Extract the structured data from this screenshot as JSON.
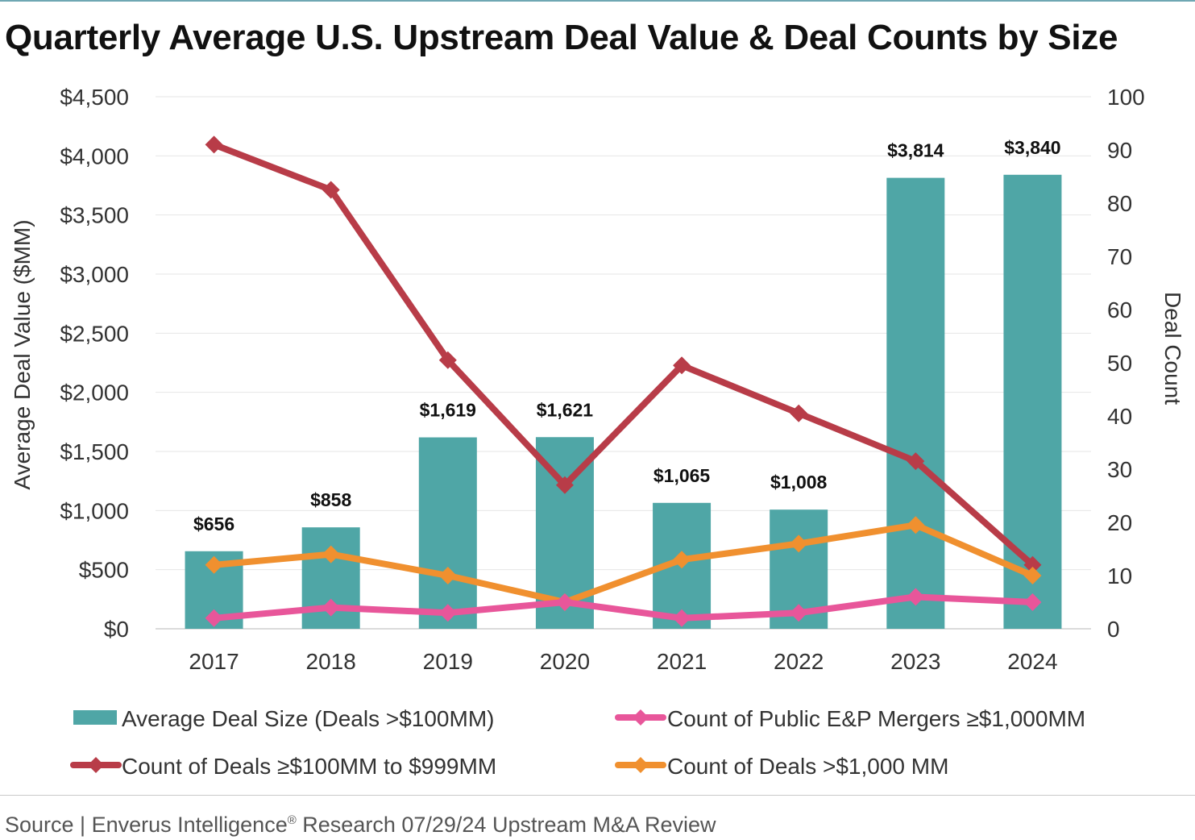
{
  "chart_data": {
    "type": "bar",
    "title": "Quarterly Average U.S. Upstream Deal Value & Deal Counts by Size",
    "categories": [
      "2017",
      "2018",
      "2019",
      "2020",
      "2021",
      "2022",
      "2023",
      "2024"
    ],
    "ylabel": "Average Deal Value ($MM)",
    "y2label": "Deal Count",
    "ylim": [
      0,
      4500
    ],
    "y2lim": [
      0,
      100
    ],
    "yticks": [
      "$0",
      "$500",
      "$1,000",
      "$1,500",
      "$2,000",
      "$2,500",
      "$3,000",
      "$3,500",
      "$4,000",
      "$4,500"
    ],
    "y2ticks": [
      "0",
      "10",
      "20",
      "30",
      "40",
      "50",
      "60",
      "70",
      "80",
      "90",
      "100"
    ],
    "grid": true,
    "series": [
      {
        "name": "Average Deal Size (Deals >$100MM)",
        "kind": "bar",
        "axis": "left",
        "color": "#4fa6a6",
        "values": [
          656,
          858,
          1619,
          1621,
          1065,
          1008,
          3814,
          3840
        ],
        "labels": [
          "$656",
          "$858",
          "$1,619",
          "$1,621",
          "$1,065",
          "$1,008",
          "$3,814",
          "$3,840"
        ]
      },
      {
        "name": "Count of Deals ≥$100MM to $999MM",
        "kind": "line",
        "axis": "right",
        "color": "#b83c48",
        "values": [
          91,
          82.5,
          50.5,
          27,
          49.5,
          40.5,
          31.5,
          12
        ]
      },
      {
        "name": "Count of Deals >$1,000 MM",
        "kind": "line",
        "axis": "right",
        "color": "#f0902f",
        "values": [
          12,
          14,
          10,
          5,
          13,
          16,
          19.5,
          10
        ]
      },
      {
        "name": "Count of Public E&P Mergers ≥$1,000MM",
        "kind": "line",
        "axis": "right",
        "color": "#e8569a",
        "values": [
          2,
          4,
          3,
          5,
          2,
          3,
          6,
          5
        ]
      }
    ]
  },
  "source": {
    "prefix": "Source | Enverus Intelligence",
    "mark": "®",
    "suffix": " Research 07/29/24 Upstream M&A Review"
  }
}
